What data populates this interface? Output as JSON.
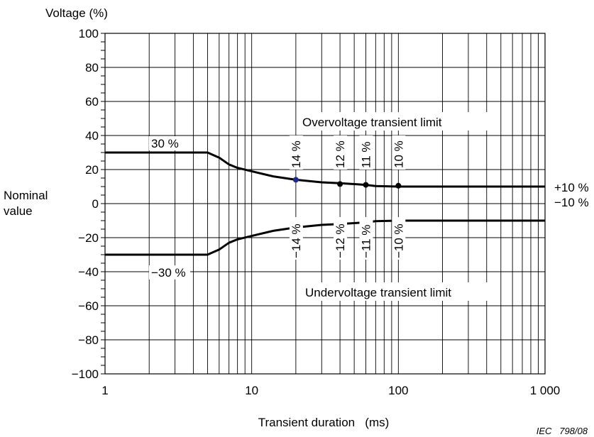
{
  "chart_data": {
    "type": "line",
    "title": "",
    "ylabel": "Voltage (%)",
    "xlabel": "Transient duration   (ms)",
    "xscale": "log",
    "xlim": [
      1,
      1000
    ],
    "ylim": [
      -100,
      100
    ],
    "grid": true,
    "x_ticks": [
      1,
      10,
      100,
      1000
    ],
    "x_tick_labels": [
      "1",
      "10",
      "100",
      "1 000"
    ],
    "y_ticks": [
      100,
      80,
      60,
      40,
      20,
      0,
      -20,
      -40,
      -60,
      -80,
      -100
    ],
    "y_tick_labels": [
      "100",
      "80",
      "60",
      "40",
      "20",
      "0",
      "−20",
      "−40",
      "−60",
      "−80",
      "−100"
    ],
    "y_side_label_line1": "Nominal",
    "y_side_label_line2": "value",
    "series": [
      {
        "x": [
          1,
          5,
          6,
          7,
          8,
          10,
          14,
          20,
          30,
          40,
          60,
          70,
          100,
          1000
        ],
        "y": [
          30,
          30,
          27,
          23,
          21,
          19,
          16,
          14,
          12.5,
          12,
          11,
          10.3,
          10,
          10
        ]
      },
      {
        "x": [
          1,
          5,
          6,
          7,
          8,
          10,
          14,
          20,
          30,
          40,
          60,
          70,
          100,
          1000
        ],
        "y": [
          -30,
          -30,
          -27,
          -23,
          -21,
          -19,
          -16,
          -14,
          -12.5,
          -12,
          -11,
          -10.3,
          -10,
          -10
        ]
      }
    ],
    "markers": [
      {
        "x": 20,
        "y": 14,
        "color": "#1f2a8a"
      },
      {
        "x": 40,
        "y": 11.5,
        "color": "#000000"
      },
      {
        "x": 60,
        "y": 11,
        "color": "#000000"
      },
      {
        "x": 100,
        "y": 10.5,
        "color": "#000000"
      },
      {
        "x": 20,
        "y": -14,
        "color": "#000000"
      },
      {
        "x": 40,
        "y": -11.5,
        "color": "#000000"
      },
      {
        "x": 60,
        "y": -11,
        "color": "#000000"
      },
      {
        "x": 100,
        "y": -10.5,
        "color": "#000000"
      }
    ],
    "annotations": {
      "upper_curve": "Overvoltage transient limit",
      "lower_curve": "Undervoltage transient limit",
      "upper_start": "30 %",
      "lower_start": "−30 %",
      "upper_end": "+10 %",
      "lower_end": "−10 %",
      "upper_points": [
        "14 %",
        "12 %",
        "11 %",
        "10 %"
      ],
      "lower_points": [
        "−14 %",
        "−12 %",
        "−11 %",
        "−10 %"
      ]
    },
    "reference": "IEC   798/08"
  }
}
